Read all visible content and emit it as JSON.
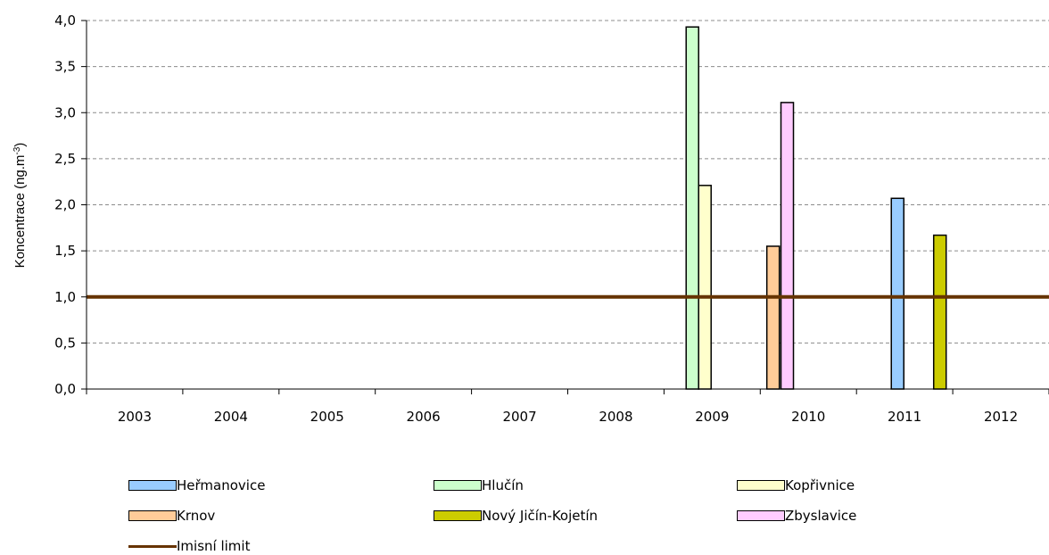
{
  "chart_data": {
    "type": "bar",
    "categories": [
      "2003",
      "2004",
      "2005",
      "2006",
      "2007",
      "2008",
      "2009",
      "2010",
      "2011",
      "2012"
    ],
    "ylabel": "Koncentrace (ng.m",
    "ylabel_sup": "-3",
    "ylabel_close": ")",
    "ylim": [
      0,
      4.0
    ],
    "yticks": [
      "0,0",
      "0,5",
      "1,0",
      "1,5",
      "2,0",
      "2,5",
      "3,0",
      "3,5",
      "4,0"
    ],
    "grid": true,
    "bar_order": [
      "Krnov",
      "Zbyslavice",
      "Heřmanovice",
      "Hlučín",
      "Kopřivnice",
      "Nový Jičín-Kojetín"
    ],
    "series": [
      {
        "name": "Heřmanovice",
        "color": "#99ccff",
        "values": [
          null,
          null,
          null,
          null,
          null,
          null,
          null,
          null,
          2.07,
          null
        ]
      },
      {
        "name": "Hlučín",
        "color": "#ccffcc",
        "values": [
          null,
          null,
          null,
          null,
          null,
          null,
          3.93,
          null,
          null,
          null
        ]
      },
      {
        "name": "Kopřivnice",
        "color": "#ffffcc",
        "values": [
          null,
          null,
          null,
          null,
          null,
          null,
          2.21,
          null,
          null,
          null
        ]
      },
      {
        "name": "Krnov",
        "color": "#ffcc99",
        "values": [
          null,
          null,
          null,
          null,
          null,
          null,
          null,
          1.55,
          null,
          null
        ]
      },
      {
        "name": "Nový Jičín-Kojetín",
        "color": "#cccc00",
        "values": [
          null,
          null,
          null,
          null,
          null,
          null,
          null,
          null,
          1.67,
          null
        ]
      },
      {
        "name": "Zbyslavice",
        "color": "#ffccff",
        "values": [
          null,
          null,
          null,
          null,
          null,
          null,
          null,
          3.11,
          null,
          null
        ]
      }
    ],
    "limit_line": {
      "name": "Imisní limit",
      "value": 1.0,
      "color": "#663300"
    },
    "legend_position": "bottom"
  }
}
